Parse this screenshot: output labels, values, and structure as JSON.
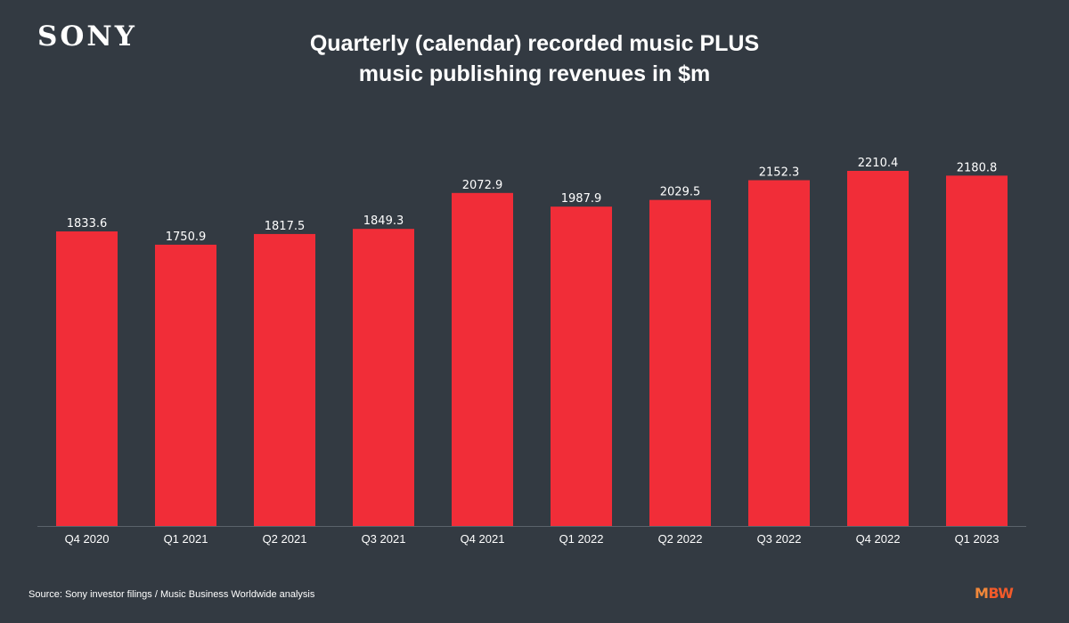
{
  "logo": {
    "text": "SONY"
  },
  "chart_data": {
    "type": "bar",
    "title_lines": [
      "Quarterly (calendar) recorded music PLUS",
      "music publishing revenues in $m"
    ],
    "categories": [
      "Q4 2020",
      "Q1 2021",
      "Q2 2021",
      "Q3 2021",
      "Q4 2021",
      "Q1 2022",
      "Q2 2022",
      "Q3 2022",
      "Q4 2022",
      "Q1 2023"
    ],
    "values": [
      1833.6,
      1750.9,
      1817.5,
      1849.3,
      2072.9,
      1987.9,
      2029.5,
      2152.3,
      2210.4,
      2180.8
    ],
    "value_labels": [
      "1833.6",
      "1750.9",
      "1817.5",
      "1849.3",
      "2072.9",
      "1987.9",
      "2029.5",
      "2152.3",
      "2210.4",
      "2180.8"
    ],
    "ylim": [
      0,
      2210.4
    ],
    "grid": false,
    "bar_color": "#f12d38",
    "axis_color": "#5b636b",
    "text_color": "#ffffff"
  },
  "footer": {
    "source": "Source: Sony investor filings / Music Business Worldwide analysis",
    "brand_m": "M",
    "brand_bw": "BW"
  }
}
